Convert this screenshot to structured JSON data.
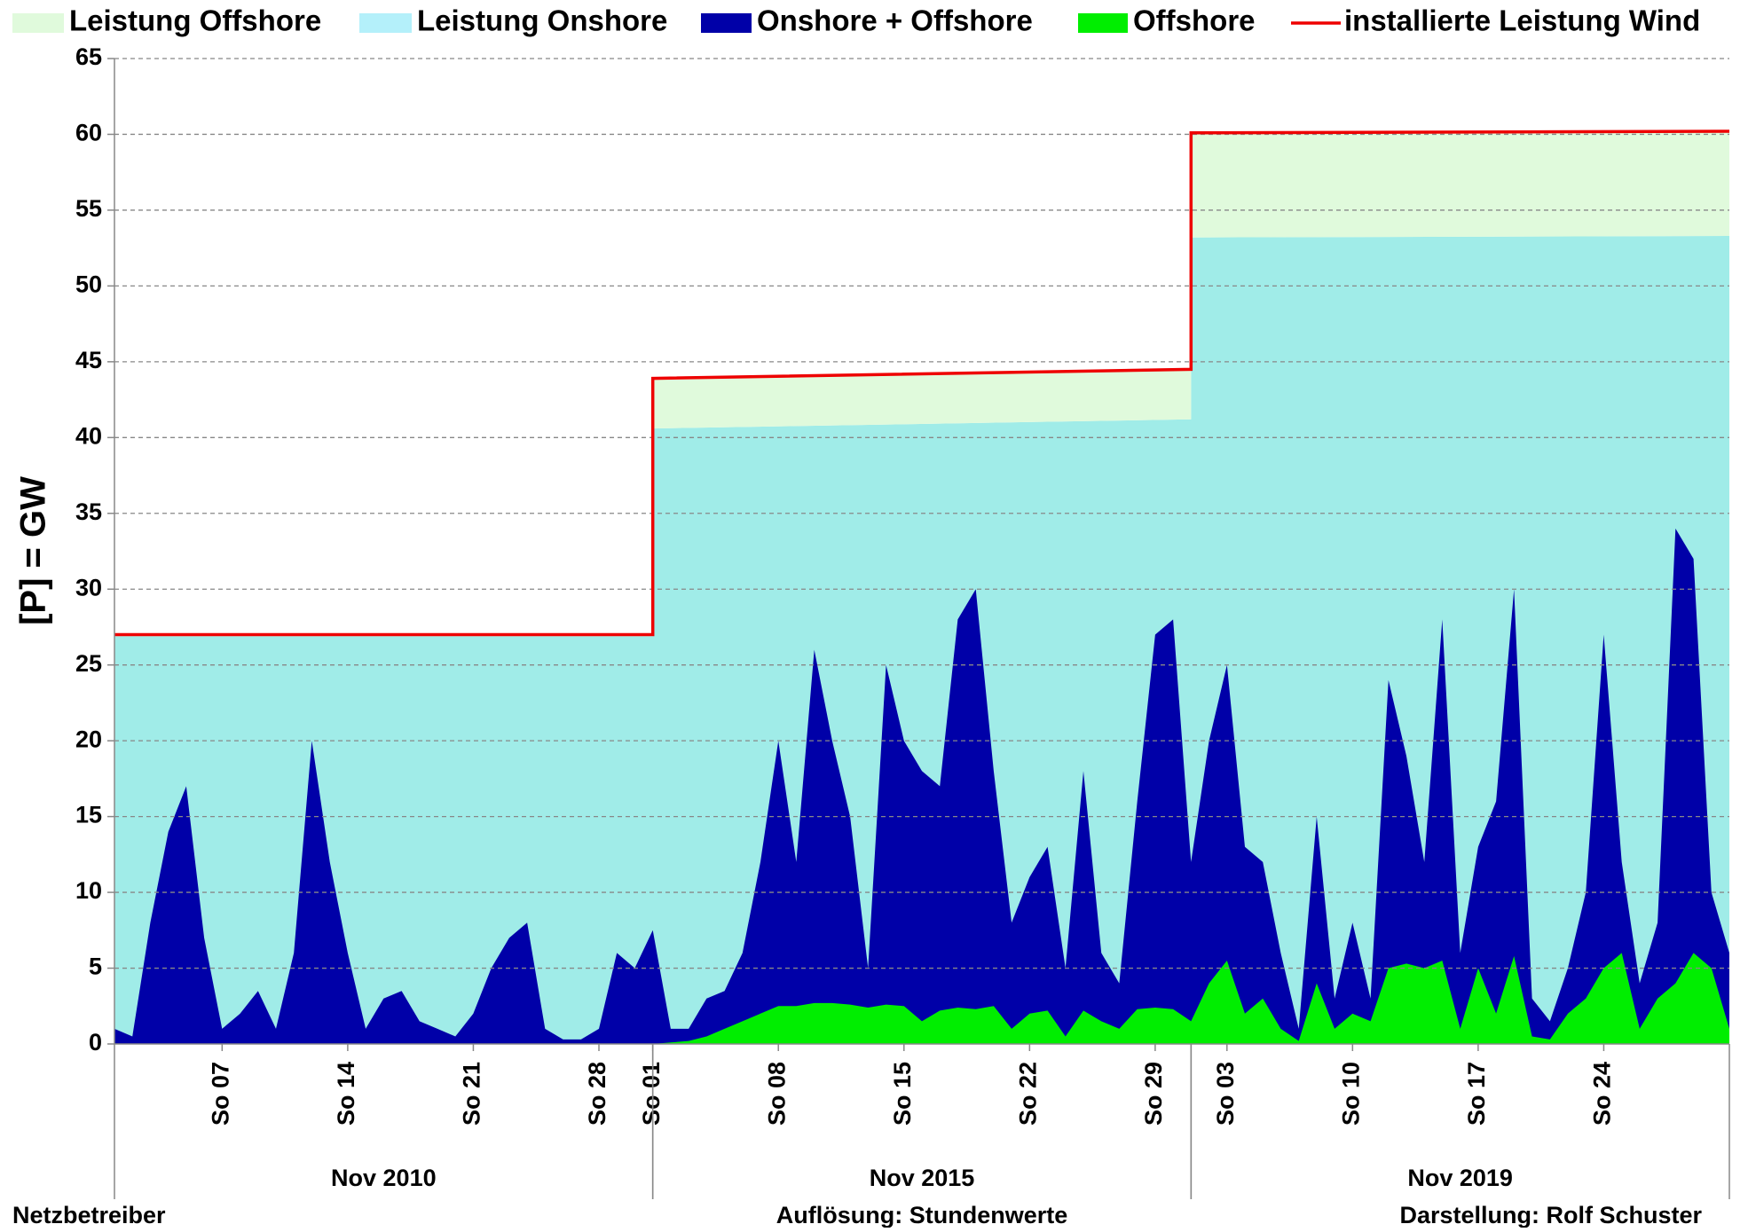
{
  "chart_data": {
    "type": "area",
    "y_label": "[P]  =  GW",
    "ylim": [
      0,
      65
    ],
    "yticks": [
      0,
      5,
      10,
      15,
      20,
      25,
      30,
      35,
      40,
      45,
      50,
      55,
      60,
      65
    ],
    "xlim": [
      0,
      90
    ],
    "xticks": [
      {
        "value": 6,
        "label": "So 07"
      },
      {
        "value": 13,
        "label": "So 14"
      },
      {
        "value": 20,
        "label": "So 21"
      },
      {
        "value": 27,
        "label": "So 28"
      },
      {
        "value": 30,
        "label": "So 01"
      },
      {
        "value": 37,
        "label": "So 08"
      },
      {
        "value": 44,
        "label": "So 15"
      },
      {
        "value": 51,
        "label": "So 22"
      },
      {
        "value": 58,
        "label": "So 29"
      },
      {
        "value": 62,
        "label": "So 03"
      },
      {
        "value": 69,
        "label": "So 10"
      },
      {
        "value": 76,
        "label": "So 17"
      },
      {
        "value": 83,
        "label": "So 24"
      }
    ],
    "groups": [
      {
        "label": "Nov 2010",
        "range": [
          0,
          30
        ]
      },
      {
        "label": "Nov 2015",
        "range": [
          30,
          60
        ]
      },
      {
        "label": "Nov 2019",
        "range": [
          60,
          90
        ]
      }
    ],
    "grid": true,
    "series": [
      {
        "name": "Leistung Offshore",
        "kind": "area",
        "color": "#e0fadc",
        "legend_color": "#e0fadc",
        "stack_base": 1,
        "x": [
          0,
          30,
          30,
          60,
          60,
          90
        ],
        "values": [
          0.1,
          0.1,
          3.3,
          3.3,
          6.9,
          6.9
        ]
      },
      {
        "name": "Leistung Onshore",
        "kind": "area",
        "color": "#a0ece8",
        "legend_color": "#b4f0fa",
        "x": [
          0,
          30,
          30,
          60,
          60,
          90
        ],
        "values": [
          26.9,
          26.9,
          40.6,
          41.2,
          53.2,
          53.3
        ]
      },
      {
        "name": "Onshore + Offshore",
        "kind": "area",
        "color": "#0000a8",
        "legend_color": "#0000a8",
        "x": [
          0,
          1,
          2,
          3,
          4,
          5,
          6,
          7,
          8,
          9,
          10,
          11,
          12,
          13,
          14,
          15,
          16,
          17,
          18,
          19,
          20,
          21,
          22,
          23,
          24,
          25,
          26,
          27,
          28,
          29,
          30,
          31,
          32,
          33,
          34,
          35,
          36,
          37,
          38,
          39,
          40,
          41,
          42,
          43,
          44,
          45,
          46,
          47,
          48,
          49,
          50,
          51,
          52,
          53,
          54,
          55,
          56,
          57,
          58,
          59,
          60,
          61,
          62,
          63,
          64,
          65,
          66,
          67,
          68,
          69,
          70,
          71,
          72,
          73,
          74,
          75,
          76,
          77,
          78,
          79,
          80,
          81,
          82,
          83,
          84,
          85,
          86,
          87,
          88,
          89,
          90
        ],
        "values": [
          1,
          0.5,
          8,
          14,
          17,
          7,
          1,
          2,
          3.5,
          1,
          6,
          20,
          12,
          6,
          1,
          3,
          3.5,
          1.5,
          1,
          0.5,
          2,
          5,
          7,
          8,
          1,
          0.3,
          0.3,
          1,
          6,
          5,
          7.5,
          1,
          1,
          3,
          3.5,
          6,
          12,
          20,
          12,
          26,
          20,
          15,
          5,
          25,
          20,
          18,
          17,
          28,
          30,
          18,
          8,
          11,
          13,
          5,
          18,
          6,
          4,
          16,
          27,
          28,
          12,
          20,
          25,
          13,
          12,
          6,
          1,
          15,
          3,
          8,
          3,
          24,
          19,
          12,
          28,
          6,
          13,
          16,
          30,
          3,
          1.5,
          5,
          10,
          27,
          12,
          4,
          8,
          34,
          32,
          10,
          6
        ]
      },
      {
        "name": "Offshore",
        "kind": "area",
        "color": "#00ee00",
        "legend_color": "#00ee00",
        "x": [
          0,
          1,
          2,
          3,
          4,
          5,
          6,
          7,
          8,
          9,
          10,
          11,
          12,
          13,
          14,
          15,
          16,
          17,
          18,
          19,
          20,
          21,
          22,
          23,
          24,
          25,
          26,
          27,
          28,
          29,
          30,
          31,
          32,
          33,
          34,
          35,
          36,
          37,
          38,
          39,
          40,
          41,
          42,
          43,
          44,
          45,
          46,
          47,
          48,
          49,
          50,
          51,
          52,
          53,
          54,
          55,
          56,
          57,
          58,
          59,
          60,
          61,
          62,
          63,
          64,
          65,
          66,
          67,
          68,
          69,
          70,
          71,
          72,
          73,
          74,
          75,
          76,
          77,
          78,
          79,
          80,
          81,
          82,
          83,
          84,
          85,
          86,
          87,
          88,
          89,
          90
        ],
        "values": [
          0,
          0,
          0,
          0,
          0,
          0,
          0,
          0,
          0,
          0,
          0,
          0,
          0,
          0,
          0,
          0,
          0,
          0,
          0,
          0,
          0,
          0,
          0,
          0,
          0,
          0,
          0,
          0,
          0,
          0,
          0,
          0.1,
          0.2,
          0.5,
          1,
          1.5,
          2,
          2.5,
          2.5,
          2.7,
          2.7,
          2.6,
          2.4,
          2.6,
          2.5,
          1.5,
          2.2,
          2.4,
          2.3,
          2.5,
          1,
          2,
          2.2,
          0.5,
          2.2,
          1.5,
          1,
          2.3,
          2.4,
          2.3,
          1.5,
          4,
          5.5,
          2,
          3,
          1,
          0.2,
          4,
          1,
          2,
          1.5,
          5,
          5.3,
          5,
          5.5,
          1,
          5,
          2,
          5.8,
          0.5,
          0.3,
          2,
          3,
          5,
          6,
          1,
          3,
          4,
          6,
          5,
          1
        ]
      },
      {
        "name": "installierte Leistung Wind",
        "kind": "line",
        "color": "#ee0000",
        "legend_color": "#ee0000",
        "x": [
          0,
          30,
          30,
          60,
          60,
          90
        ],
        "values": [
          27.0,
          27.0,
          43.9,
          44.5,
          60.1,
          60.2
        ]
      }
    ],
    "footer": [
      "Netzbetreiber",
      "Auflösung: Stundenwerte",
      "Darstellung: Rolf Schuster"
    ]
  }
}
